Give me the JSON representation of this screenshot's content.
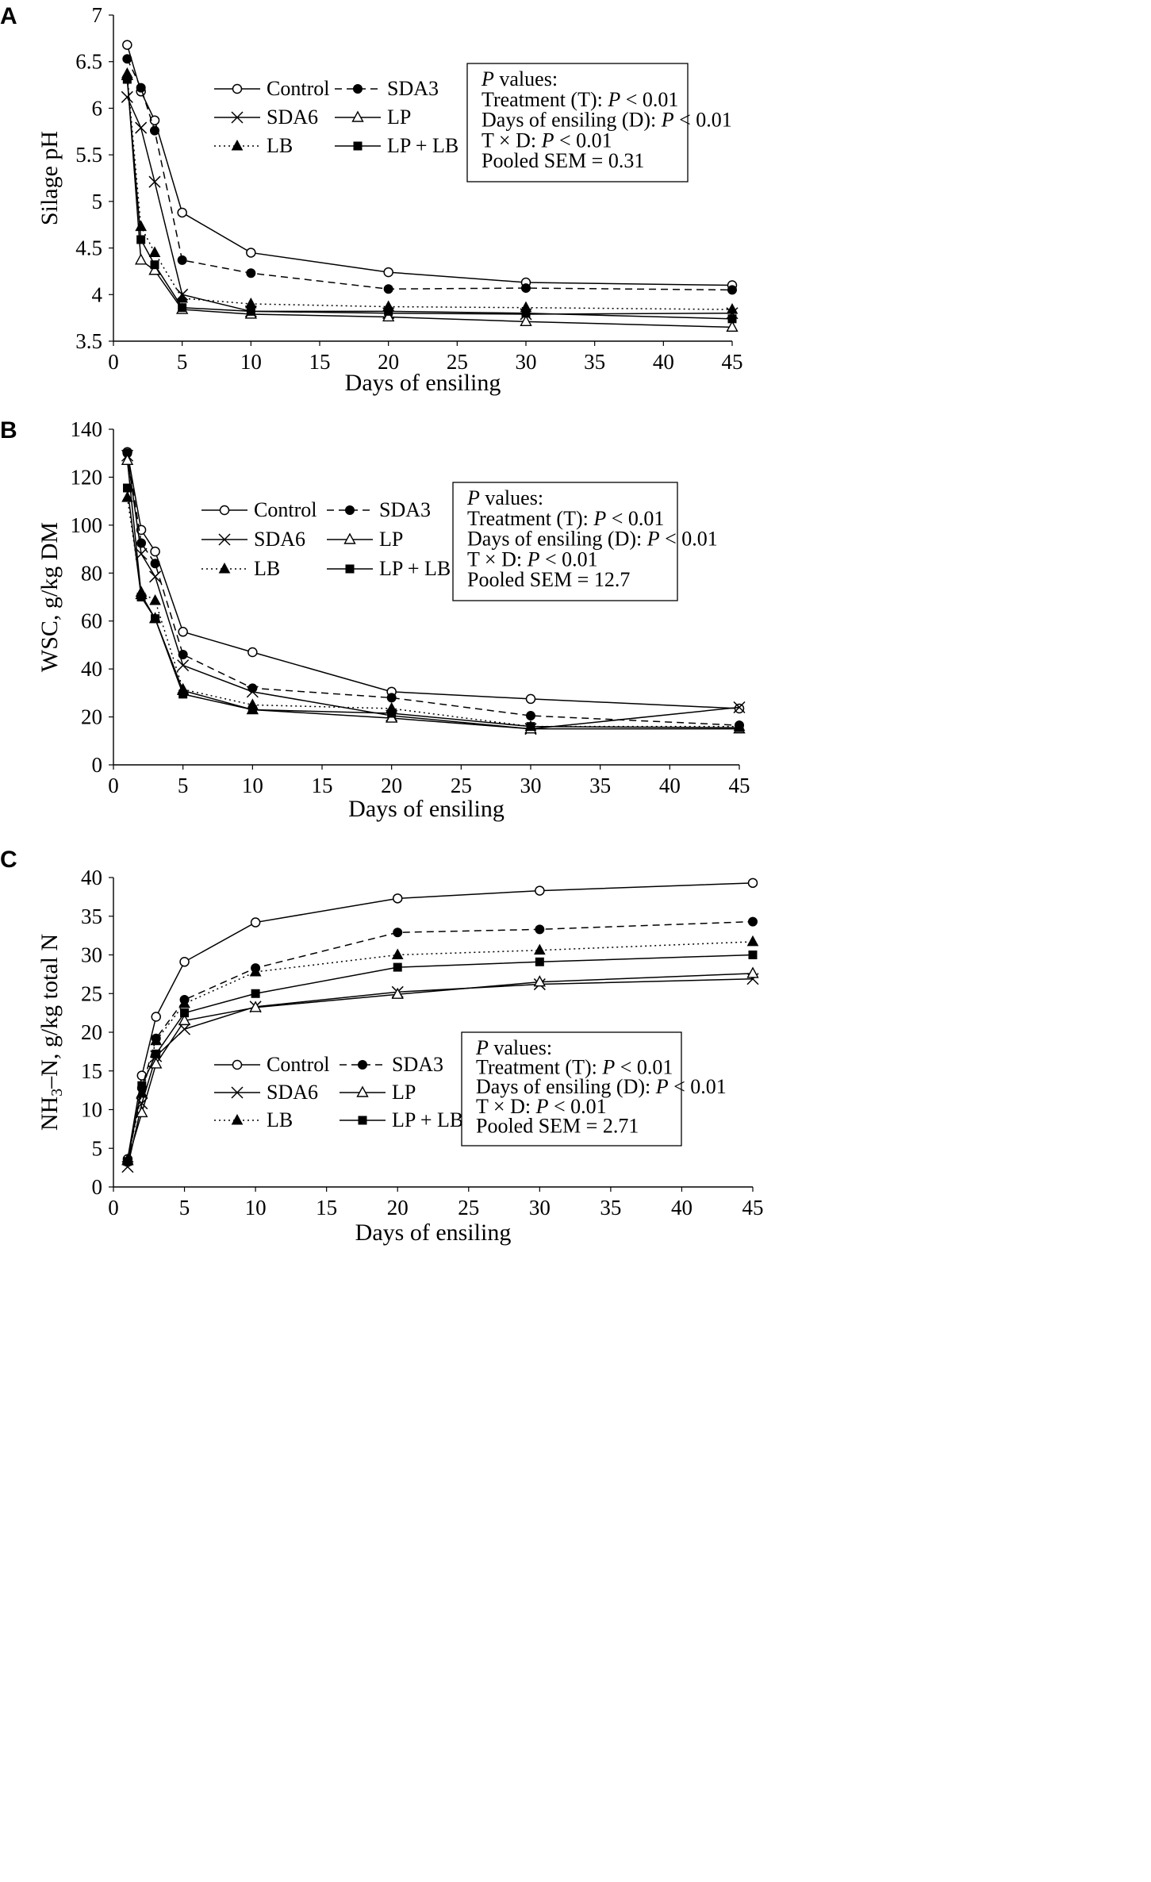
{
  "chart_data": [
    {
      "type": "line",
      "panel": "A",
      "xlabel": "Days of ensiling",
      "ylabel": "Silage pH",
      "xlim": [
        0,
        45
      ],
      "ylim": [
        3.5,
        7
      ],
      "xticks": [
        "0",
        "5",
        "10",
        "15",
        "20",
        "25",
        "30",
        "35",
        "40",
        "45"
      ],
      "yticks": [
        "3.5",
        "4",
        "4.5",
        "5",
        "5.5",
        "6",
        "6.5",
        "7"
      ],
      "x": [
        1,
        2,
        3,
        5,
        10,
        20,
        30,
        45
      ],
      "series": [
        {
          "name": "Control",
          "style": "solid",
          "marker": "circle-open",
          "values": [
            6.68,
            6.18,
            5.87,
            4.88,
            4.45,
            4.24,
            4.13,
            4.1
          ]
        },
        {
          "name": "SDA3",
          "style": "dashed",
          "marker": "circle-filled",
          "values": [
            6.53,
            6.22,
            5.76,
            4.37,
            4.23,
            4.06,
            4.07,
            4.05
          ]
        },
        {
          "name": "SDA6",
          "style": "solid",
          "marker": "cross",
          "values": [
            6.12,
            5.79,
            5.21,
            4.0,
            3.82,
            3.8,
            3.79,
            3.8
          ]
        },
        {
          "name": "LP",
          "style": "solid",
          "marker": "triangle-open",
          "values": [
            6.35,
            4.37,
            4.26,
            3.84,
            3.79,
            3.76,
            3.71,
            3.65
          ]
        },
        {
          "name": "LB",
          "style": "dotted",
          "marker": "triangle-filled",
          "values": [
            6.37,
            4.73,
            4.45,
            3.96,
            3.9,
            3.87,
            3.86,
            3.84
          ]
        },
        {
          "name": "LP + LB",
          "style": "solid",
          "marker": "square-filled",
          "values": [
            6.31,
            4.59,
            4.32,
            3.86,
            3.82,
            3.82,
            3.8,
            3.74
          ]
        }
      ],
      "pvalues": {
        "heading": " values:",
        "p": "P",
        "rows": [
          {
            "label": "Treatment (T): ",
            "value": " < 0.01"
          },
          {
            "label": "Days of ensiling (D): ",
            "value": " < 0.01"
          },
          {
            "label": "T × D: ",
            "value": " < 0.01"
          }
        ],
        "sem": "Pooled SEM = 0.31"
      }
    },
    {
      "type": "line",
      "panel": "B",
      "xlabel": "Days of ensiling",
      "ylabel": "WSC, g/kg DM",
      "xlim": [
        0,
        45
      ],
      "ylim": [
        0,
        140
      ],
      "xticks": [
        "0",
        "5",
        "10",
        "15",
        "20",
        "25",
        "30",
        "35",
        "40",
        "45"
      ],
      "yticks": [
        "0",
        "20",
        "40",
        "60",
        "80",
        "100",
        "120",
        "140"
      ],
      "x": [
        1,
        2,
        3,
        5,
        10,
        20,
        30,
        45
      ],
      "series": [
        {
          "name": "Control",
          "style": "solid",
          "marker": "circle-open",
          "values": [
            130.5,
            98,
            89,
            55.5,
            47,
            30.5,
            27.5,
            23.5
          ]
        },
        {
          "name": "SDA3",
          "style": "dashed",
          "marker": "circle-filled",
          "values": [
            130,
            92.5,
            84,
            46,
            32,
            28,
            20.5,
            16.5
          ]
        },
        {
          "name": "SDA6",
          "style": "solid",
          "marker": "cross",
          "values": [
            129,
            88,
            78.5,
            41.5,
            30.5,
            20.5,
            15,
            24
          ]
        },
        {
          "name": "LP",
          "style": "solid",
          "marker": "triangle-open",
          "values": [
            127,
            71,
            61,
            31,
            23,
            19.5,
            15,
            15
          ]
        },
        {
          "name": "LB",
          "style": "dotted",
          "marker": "triangle-filled",
          "values": [
            111.5,
            72,
            68.5,
            31.5,
            25,
            23.5,
            16,
            16
          ]
        },
        {
          "name": "LP + LB",
          "style": "solid",
          "marker": "square-filled",
          "values": [
            115.5,
            70,
            61,
            29.5,
            23,
            21.5,
            16,
            15.5
          ]
        }
      ],
      "pvalues": {
        "heading": " values:",
        "p": "P",
        "rows": [
          {
            "label": "Treatment (T): ",
            "value": " < 0.01"
          },
          {
            "label": "Days of ensiling (D): ",
            "value": " < 0.01"
          },
          {
            "label": "T × D: ",
            "value": " < 0.01"
          }
        ],
        "sem": "Pooled SEM = 12.7"
      }
    },
    {
      "type": "line",
      "panel": "C",
      "xlabel": "Days of ensiling",
      "ylabel_main": "NH",
      "ylabel_sub": "3",
      "ylabel_rest": "–N, g/kg total N",
      "xlim": [
        0,
        45
      ],
      "ylim": [
        0,
        40
      ],
      "xticks": [
        "0",
        "5",
        "10",
        "15",
        "20",
        "25",
        "30",
        "35",
        "40",
        "45"
      ],
      "yticks": [
        "0",
        "5",
        "10",
        "15",
        "20",
        "25",
        "30",
        "35",
        "40"
      ],
      "x": [
        1,
        2,
        3,
        5,
        10,
        20,
        30,
        45
      ],
      "series": [
        {
          "name": "Control",
          "style": "solid",
          "marker": "circle-open",
          "values": [
            3.6,
            14.4,
            22,
            29.1,
            34.2,
            37.3,
            38.3,
            39.3
          ]
        },
        {
          "name": "SDA3",
          "style": "dashed",
          "marker": "circle-filled",
          "values": [
            3.2,
            12.8,
            19.2,
            24.2,
            28.3,
            32.9,
            33.3,
            34.3
          ]
        },
        {
          "name": "SDA6",
          "style": "solid",
          "marker": "cross",
          "values": [
            2.6,
            10.8,
            16.9,
            20.4,
            23.3,
            25.2,
            26.2,
            26.9
          ]
        },
        {
          "name": "LP",
          "style": "solid",
          "marker": "triangle-open",
          "values": [
            3.4,
            9.6,
            15.9,
            21.5,
            23.2,
            24.9,
            26.5,
            27.6
          ]
        },
        {
          "name": "LB",
          "style": "dotted",
          "marker": "triangle-filled",
          "values": [
            3.5,
            12.1,
            18.9,
            23.7,
            27.8,
            30.0,
            30.6,
            31.7
          ]
        },
        {
          "name": "LP + LB",
          "style": "solid",
          "marker": "square-filled",
          "values": [
            3.3,
            13.1,
            17.2,
            22.5,
            25.0,
            28.4,
            29.1,
            30.0
          ]
        }
      ],
      "pvalues": {
        "heading": " values:",
        "p": "P",
        "rows": [
          {
            "label": "Treatment (T): ",
            "value": " < 0.01"
          },
          {
            "label": "Days of ensiling (D): ",
            "value": " < 0.01"
          },
          {
            "label": "T × D: ",
            "value": " < 0.01"
          }
        ],
        "sem": "Pooled SEM = 2.71"
      }
    }
  ]
}
